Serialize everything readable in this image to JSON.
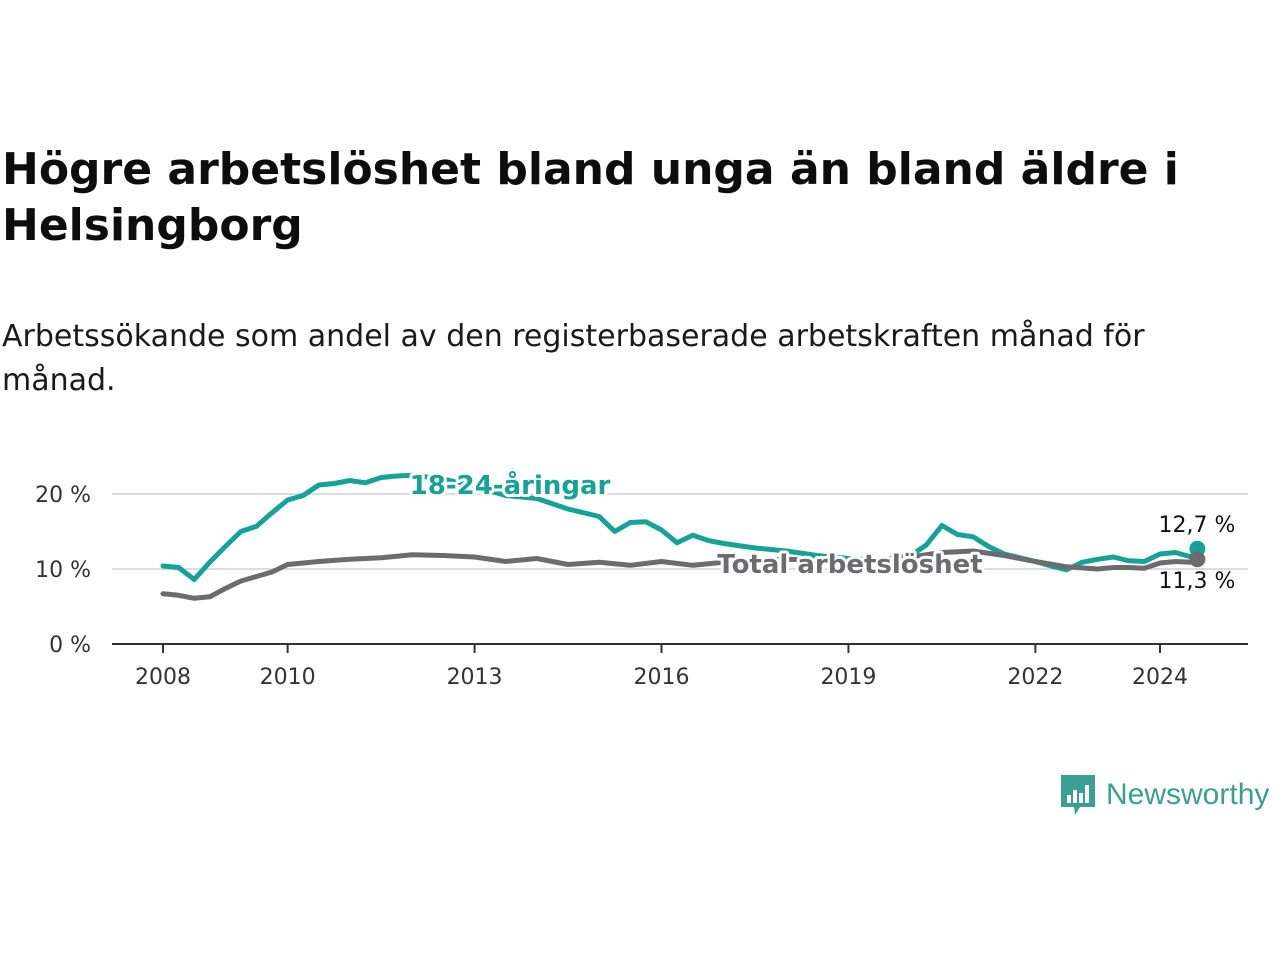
{
  "title": "Högre arbetslöshet bland unga än bland äldre i Helsingborg",
  "subtitle": "Arbetssökande som andel av den registerbaserade arbetskraften månad för månad.",
  "brand": {
    "name": "Newsworthy",
    "color": "#3a9e93",
    "icon": "bar-chart-speech-bubble-icon"
  },
  "chart_data": {
    "type": "line",
    "title": "Högre arbetslöshet bland unga än bland äldre i Helsingborg",
    "xlabel": "",
    "ylabel": "",
    "xlim": [
      2007.7,
      2025.1
    ],
    "ylim": [
      0,
      20
    ],
    "x_ticks": [
      2008,
      2010,
      2013,
      2016,
      2019,
      2022,
      2024
    ],
    "x_tick_labels": [
      "2008",
      "2010",
      "2013",
      "2016",
      "2019",
      "2022",
      "2024"
    ],
    "y_ticks": [
      0,
      10,
      20
    ],
    "y_tick_labels": [
      "0 %",
      "10 %",
      "20 %"
    ],
    "grid": true,
    "series": [
      {
        "name": "18-24-åringar",
        "color": "#17a297",
        "end_label": "12,7 %",
        "x": [
          2008.0,
          2008.25,
          2008.5,
          2008.75,
          2009.0,
          2009.25,
          2009.5,
          2009.75,
          2010.0,
          2010.25,
          2010.5,
          2010.75,
          2011.0,
          2011.25,
          2011.5,
          2011.75,
          2012.0,
          2012.5,
          2013.0,
          2013.5,
          2014.0,
          2014.5,
          2015.0,
          2015.25,
          2015.5,
          2015.75,
          2016.0,
          2016.25,
          2016.5,
          2016.75,
          2017.0,
          2017.5,
          2018.0,
          2018.5,
          2019.0,
          2019.5,
          2020.0,
          2020.25,
          2020.5,
          2020.75,
          2021.0,
          2021.25,
          2021.5,
          2021.75,
          2022.0,
          2022.25,
          2022.5,
          2022.75,
          2023.0,
          2023.25,
          2023.5,
          2023.75,
          2024.0,
          2024.25,
          2024.5,
          2024.6
        ],
        "values": [
          10.4,
          10.2,
          8.6,
          10.9,
          13.0,
          15.0,
          15.7,
          17.5,
          19.2,
          19.8,
          21.2,
          21.4,
          21.8,
          21.5,
          22.2,
          22.4,
          22.5,
          22.0,
          21.0,
          19.8,
          19.4,
          18.0,
          17.0,
          15.0,
          16.2,
          16.3,
          15.2,
          13.5,
          14.5,
          13.8,
          13.4,
          12.8,
          12.4,
          11.8,
          11.4,
          11.2,
          11.8,
          13.2,
          15.8,
          14.6,
          14.3,
          13.0,
          12.0,
          11.5,
          11.0,
          10.4,
          9.9,
          10.9,
          11.3,
          11.6,
          11.1,
          11.0,
          12.0,
          12.2,
          11.6,
          12.7
        ]
      },
      {
        "name": "Total arbetslöshet",
        "color": "#6c6c70",
        "end_label": "11,3 %",
        "x": [
          2008.0,
          2008.25,
          2008.5,
          2008.75,
          2009.0,
          2009.25,
          2009.5,
          2009.75,
          2010.0,
          2010.5,
          2011.0,
          2011.5,
          2012.0,
          2012.5,
          2013.0,
          2013.5,
          2014.0,
          2014.5,
          2015.0,
          2015.5,
          2016.0,
          2016.5,
          2017.0,
          2017.5,
          2018.0,
          2018.5,
          2019.0,
          2019.5,
          2020.0,
          2020.5,
          2021.0,
          2021.5,
          2022.0,
          2022.5,
          2023.0,
          2023.25,
          2023.5,
          2023.75,
          2024.0,
          2024.25,
          2024.5,
          2024.6
        ],
        "values": [
          6.7,
          6.5,
          6.1,
          6.3,
          7.4,
          8.4,
          9.0,
          9.6,
          10.6,
          11.0,
          11.3,
          11.5,
          11.9,
          11.8,
          11.6,
          11.0,
          11.4,
          10.6,
          10.9,
          10.5,
          11.0,
          10.5,
          10.9,
          11.1,
          11.3,
          11.2,
          11.0,
          11.3,
          11.6,
          12.2,
          12.4,
          11.8,
          11.0,
          10.3,
          10.0,
          10.2,
          10.2,
          10.1,
          10.8,
          11.0,
          10.9,
          11.3
        ]
      }
    ]
  }
}
